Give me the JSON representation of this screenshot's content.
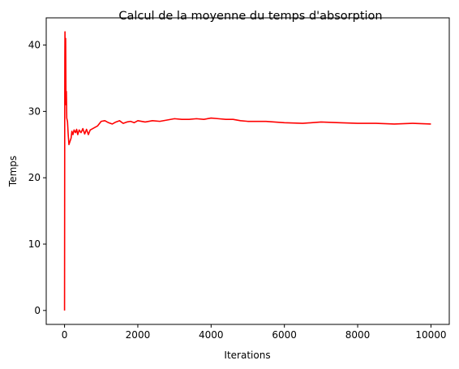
{
  "chart_data": {
    "type": "line",
    "title": "Calcul de la moyenne du temps d'absorption",
    "xlabel": "Iterations",
    "ylabel": "Temps",
    "xlim": [
      -500,
      10500
    ],
    "ylim": [
      -2.1,
      44.1
    ],
    "xticks": [
      0,
      2000,
      4000,
      6000,
      8000,
      10000
    ],
    "xtick_labels": [
      "0",
      "2000",
      "4000",
      "6000",
      "8000",
      "10000"
    ],
    "yticks": [
      0,
      10,
      20,
      30,
      40
    ],
    "ytick_labels": [
      "0",
      "10",
      "20",
      "30",
      "40"
    ],
    "grid": false,
    "legend": "none",
    "series": [
      {
        "color": "#ff0000",
        "x": [
          0,
          5,
          8,
          12,
          20,
          30,
          40,
          50,
          60,
          80,
          100,
          120,
          150,
          180,
          200,
          230,
          260,
          300,
          330,
          360,
          400,
          450,
          500,
          550,
          600,
          650,
          700,
          800,
          900,
          1000,
          1100,
          1200,
          1300,
          1400,
          1500,
          1600,
          1700,
          1800,
          1900,
          2000,
          2200,
          2400,
          2600,
          2800,
          3000,
          3200,
          3400,
          3600,
          3800,
          4000,
          4200,
          4400,
          4600,
          4800,
          5000,
          5500,
          6000,
          6500,
          7000,
          7500,
          8000,
          8500,
          9000,
          9500,
          10000
        ],
        "y": [
          0,
          30,
          38,
          42,
          34,
          41,
          31,
          33,
          29,
          28.5,
          26.5,
          25,
          25.5,
          26,
          27,
          26.5,
          27.2,
          26.8,
          27.3,
          26.5,
          27.2,
          26.8,
          27.4,
          26.6,
          27.3,
          26.5,
          27.2,
          27.5,
          27.8,
          28.5,
          28.6,
          28.3,
          28.1,
          28.4,
          28.6,
          28.2,
          28.4,
          28.5,
          28.3,
          28.6,
          28.4,
          28.6,
          28.5,
          28.7,
          28.9,
          28.8,
          28.8,
          28.9,
          28.8,
          29.0,
          28.9,
          28.8,
          28.8,
          28.6,
          28.5,
          28.5,
          28.3,
          28.2,
          28.4,
          28.3,
          28.2,
          28.2,
          28.1,
          28.2,
          28.1
        ]
      }
    ]
  }
}
